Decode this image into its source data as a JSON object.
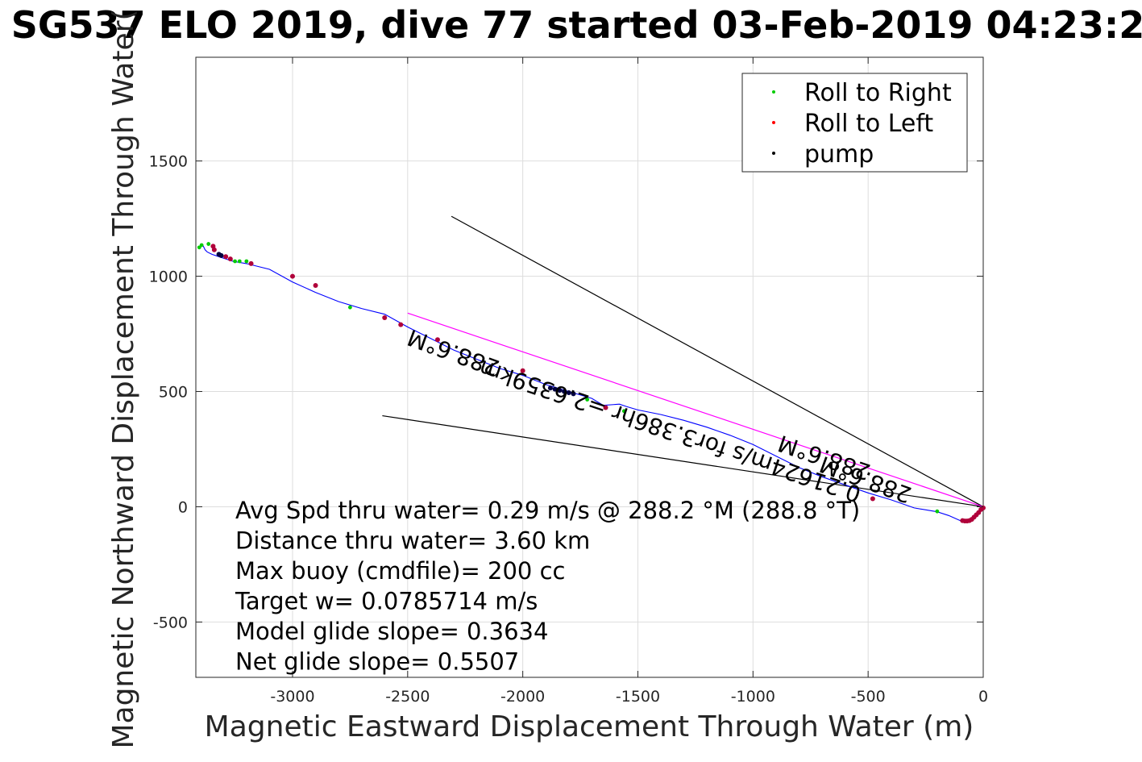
{
  "chart_data": {
    "type": "line",
    "title": "SG537 ELO 2019, dive 77 started 03-Feb-2019 04:23:2",
    "xlabel": "Magnetic Eastward Displacement Through Water (m)",
    "ylabel": "Magnetic Northward Displacement Through Water(",
    "xlim": [
      -3420,
      0
    ],
    "ylim": [
      -740,
      1950
    ],
    "xticks": [
      -3000,
      -2500,
      -2000,
      -1500,
      -1000,
      -500,
      0
    ],
    "xtick_labels": [
      "-3000",
      "-2500",
      "-2000",
      "-1500",
      "-1000",
      "-500",
      "0"
    ],
    "yticks": [
      -500,
      0,
      500,
      1000,
      1500
    ],
    "ytick_labels": [
      "-500",
      "0",
      "500",
      "1000",
      "1500"
    ],
    "grid": true,
    "legend_position": "top-right",
    "legend": [
      {
        "label": "Roll to Right",
        "color": "#00cc00"
      },
      {
        "label": "Roll to Left",
        "color": "#ff0000"
      },
      {
        "label": "pump",
        "color": "#000000"
      }
    ],
    "track": {
      "color": "#0000ff",
      "x": [
        0,
        -20,
        -40,
        -60,
        -80,
        -100,
        -150,
        -200,
        -300,
        -400,
        -500,
        -600,
        -700,
        -800,
        -900,
        -1000,
        -1100,
        -1200,
        -1300,
        -1400,
        -1500,
        -1550,
        -1580,
        -1650,
        -1700,
        -1800,
        -1900,
        -2000,
        -2100,
        -2200,
        -2300,
        -2400,
        -2500,
        -2600,
        -2700,
        -2800,
        -2900,
        -3000,
        -3100,
        -3200,
        -3260,
        -3290,
        -3320,
        -3350,
        -3370,
        -3380,
        -3385,
        -3390,
        -3400,
        -3410
      ],
      "y": [
        0,
        -20,
        -45,
        -60,
        -65,
        -60,
        -38,
        -22,
        -5,
        30,
        60,
        95,
        130,
        170,
        220,
        270,
        310,
        345,
        375,
        400,
        420,
        435,
        445,
        440,
        470,
        500,
        530,
        570,
        600,
        640,
        680,
        730,
        780,
        835,
        860,
        890,
        930,
        975,
        1030,
        1055,
        1065,
        1075,
        1085,
        1095,
        1105,
        1115,
        1125,
        1135,
        1130,
        1125
      ]
    },
    "roll_right": {
      "x": [
        -3405,
        -3395,
        -3365,
        -3250,
        -3230,
        -3200,
        -2750,
        -1720,
        -1560,
        -200
      ],
      "y": [
        1125,
        1135,
        1140,
        1065,
        1065,
        1065,
        865,
        465,
        415,
        -20
      ]
    },
    "roll_left": {
      "x": [
        -3345,
        -3340,
        -3290,
        -3270,
        -3180,
        -3000,
        -2900,
        -2600,
        -2530,
        -2370,
        -2000,
        -1640,
        -480,
        -90,
        -80,
        -70,
        -60,
        -50,
        -40,
        -30,
        -20,
        -10,
        0
      ],
      "y": [
        1130,
        1115,
        1085,
        1075,
        1055,
        1000,
        960,
        820,
        790,
        725,
        590,
        430,
        35,
        -60,
        -62,
        -62,
        -60,
        -55,
        -45,
        -35,
        -25,
        -12,
        -5
      ]
    },
    "pump": {
      "x": [
        -3320,
        -3310,
        -1880,
        -1860,
        -1840,
        -1820,
        -1800,
        -1780
      ],
      "y": [
        1095,
        1090,
        515,
        510,
        505,
        500,
        495,
        490
      ]
    },
    "lines": [
      {
        "name": "line1",
        "color": "#000000",
        "x": [
          -2310,
          0
        ],
        "y": [
          1260,
          0
        ]
      },
      {
        "name": "line2",
        "color": "#000000",
        "x": [
          -2610,
          0
        ],
        "y": [
          395,
          0
        ]
      },
      {
        "name": "line3",
        "color": "#ff00ff",
        "x": [
          -2500,
          0
        ],
        "y": [
          840,
          0
        ]
      }
    ],
    "rotated_labels": [
      {
        "text": "288.6°M",
        "x": -2290,
        "y": 700,
        "angle": 200
      },
      {
        "text": "0.21624m/s for3.386hr =2.6359km",
        "x": -1350,
        "y": 360,
        "angle": 198.6
      },
      {
        "text": "288.6°M",
        "x": -680,
        "y": 245,
        "angle": 198.6
      },
      {
        "text": "288.6°M",
        "x": -500,
        "y": 150,
        "angle": 200
      }
    ],
    "annotations": [
      "Avg Spd thru water=  0.29 m/s @ 288.2 °M (288.8 °T)",
      "Distance thru water=  3.60 km",
      "Max buoy (cmdfile)= 200 cc",
      "Target w= 0.0785714 m/s",
      "Model glide slope= 0.3634",
      "Net glide slope= 0.5507"
    ]
  }
}
